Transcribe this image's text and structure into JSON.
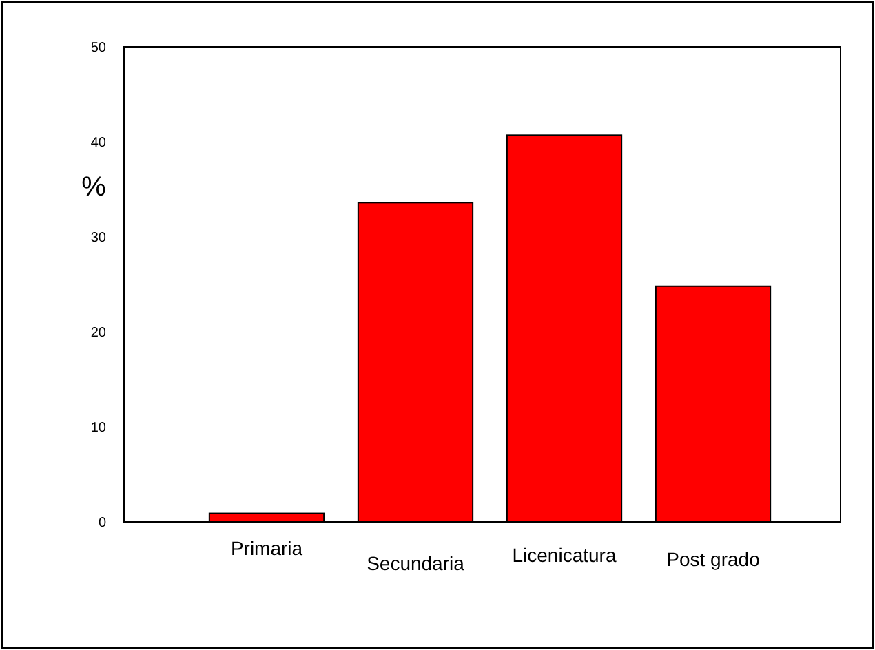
{
  "chart_data": {
    "type": "bar",
    "ylabel": "%",
    "categories": [
      "Primaria",
      "Secundaria",
      "Licenicatura",
      "Post grado"
    ],
    "values": [
      0.9,
      33.6,
      40.7,
      24.8
    ],
    "color": "#ff0000",
    "ylim": [
      0,
      50
    ],
    "yticks": [
      0,
      10,
      20,
      30,
      40,
      50
    ],
    "grid": false
  }
}
